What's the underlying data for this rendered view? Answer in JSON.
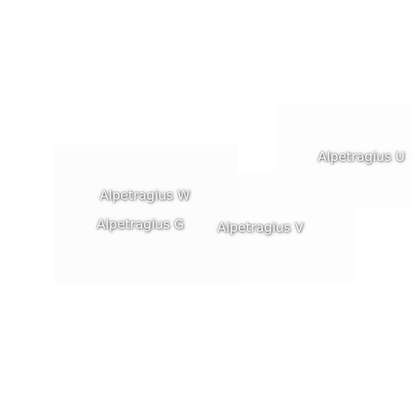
{
  "map": {
    "labels": {
      "u": "Alpetragius U",
      "w": "Alpetragius W",
      "g": "Alpetragius G",
      "v": "Alpetragius V"
    }
  }
}
